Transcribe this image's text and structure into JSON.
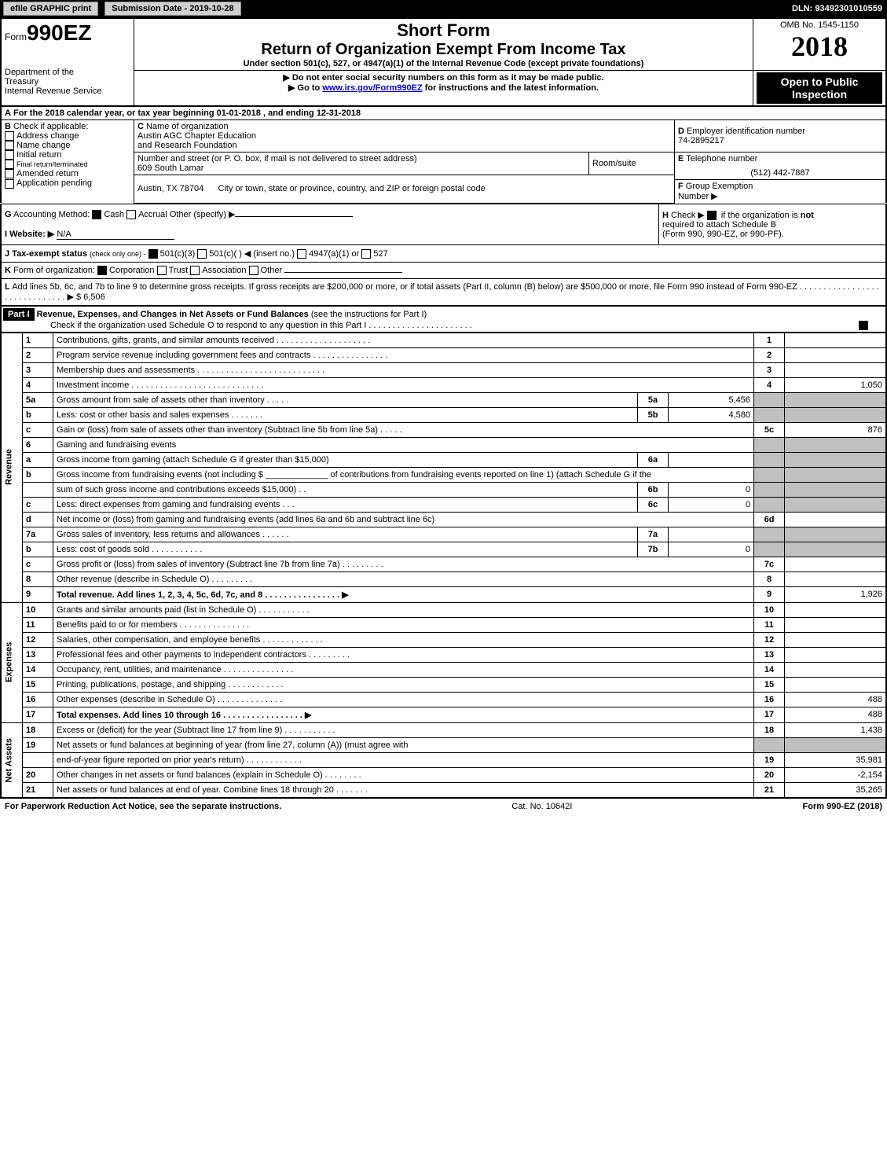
{
  "top": {
    "efile_btn": "efile GRAPHIC print",
    "submission": "Submission Date - 2019-10-28",
    "dln": "DLN: 93492301010559"
  },
  "header": {
    "form_prefix": "Form",
    "form_number": "990EZ",
    "short_form": "Short Form",
    "main_title": "Return of Organization Exempt From Income Tax",
    "sub1": "Under section 501(c), 527, or 4947(a)(1) of the Internal Revenue Code (except private foundations)",
    "sub2": "▶ Do not enter social security numbers on this form as it may be made public.",
    "sub3_prefix": "▶ Go to ",
    "sub3_link": "www.irs.gov/Form990EZ",
    "sub3_suffix": " for instructions and the latest information.",
    "dept1": "Department of the",
    "dept2": "Treasury",
    "dept3": "Internal Revenue Service",
    "omb": "OMB No. 1545-1150",
    "year": "2018",
    "open1": "Open to Public",
    "open2": "Inspection"
  },
  "lineA": {
    "label": "A",
    "text_prefix": "For the 2018 calendar year, or tax year beginning ",
    "begin_date": "01-01-2018",
    "mid": ", and ending ",
    "end_date": "12-31-2018"
  },
  "boxB": {
    "label": "B",
    "title": "Check if applicable:",
    "items": [
      "Address change",
      "Name change",
      "Initial return",
      "Final return/terminated",
      "Amended return",
      "Application pending"
    ]
  },
  "boxC": {
    "label": "C",
    "title": "Name of organization",
    "name1": "Austin AGC Chapter Education",
    "name2": "and Research Foundation",
    "addr_title": "Number and street (or P. O. box, if mail is not delivered to street address)",
    "addr": "609 South Lamar",
    "room_title": "Room/suite",
    "city_title": "City or town, state or province, country, and ZIP or foreign postal code",
    "city": "Austin, TX  78704"
  },
  "boxD": {
    "label": "D",
    "title": "Employer identification number",
    "value": "74-2895217"
  },
  "boxE": {
    "label": "E",
    "title": "Telephone number",
    "value": "(512) 442-7887"
  },
  "boxF": {
    "label": "F",
    "title": "Group Exemption",
    "sub": "Number ▶"
  },
  "lineG": {
    "label": "G",
    "text": " Accounting Method:",
    "opt1": "Cash",
    "opt2": "Accrual",
    "opt3": "Other (specify) ▶"
  },
  "lineH": {
    "label": "H",
    "text1": "Check ▶",
    "text2": "if the organization is ",
    "text3": "not",
    "text4": "required to attach Schedule B",
    "text5": "(Form 990, 990-EZ, or 990-PF)."
  },
  "lineI": {
    "label": "I Website: ▶",
    "value": "N/A"
  },
  "lineJ": {
    "label": "J Tax-exempt status",
    "note": "(check only one) -",
    "opt1": "501(c)(3)",
    "opt2": "501(c)(  ) ◀ (insert no.)",
    "opt3": "4947(a)(1) or",
    "opt4": "527"
  },
  "lineK": {
    "label": "K",
    "text": "Form of organization:",
    "opt1": "Corporation",
    "opt2": "Trust",
    "opt3": "Association",
    "opt4": "Other"
  },
  "lineL": {
    "label": "L",
    "text": "Add lines 5b, 6c, and 7b to line 9 to determine gross receipts. If gross receipts are $200,000 or more, or if total assets (Part II, column (B) below) are $500,000 or more, file Form 990 instead of Form 990-EZ . . . . . . . . . . . . . . . . . . . . . . . . . . . . . . ▶ $",
    "value": "6,506"
  },
  "part1": {
    "label": "Part I",
    "title": "Revenue, Expenses, and Changes in Net Assets or Fund Balances",
    "subtitle": " (see the instructions for Part I)",
    "check_text": "Check if the organization used Schedule O to respond to any question in this Part I . . . . . . . . . . . . . . . . . . . . . ."
  },
  "sections": {
    "revenue": "Revenue",
    "expenses": "Expenses",
    "netassets": "Net Assets"
  },
  "rows": [
    {
      "n": "1",
      "desc": "Contributions, gifts, grants, and similar amounts received . . . . . . . . . . . . . . . . . . . .",
      "box": "1",
      "amt": ""
    },
    {
      "n": "2",
      "desc": "Program service revenue including government fees and contracts . . . . . . . . . . . . . . . .",
      "box": "2",
      "amt": ""
    },
    {
      "n": "3",
      "desc": "Membership dues and assessments . . . . . . . . . . . . . . . . . . . . . . . . . . .",
      "box": "3",
      "amt": ""
    },
    {
      "n": "4",
      "desc": "Investment income . . . . . . . . . . . . . . . . . . . . . . . . . . . .",
      "box": "4",
      "amt": "1,050"
    },
    {
      "n": "5a",
      "desc": "Gross amount from sale of assets other than inventory . . . . .",
      "sbox": "5a",
      "samt": "5,456"
    },
    {
      "n": "b",
      "desc": "Less: cost or other basis and sales expenses . . . . . . .",
      "sbox": "5b",
      "samt": "4,580"
    },
    {
      "n": "c",
      "desc": "Gain or (loss) from sale of assets other than inventory (Subtract line 5b from line 5a) . . . . .",
      "box": "5c",
      "amt": "876"
    },
    {
      "n": "6",
      "desc": "Gaming and fundraising events",
      "gray": true
    },
    {
      "n": "a",
      "desc": "Gross income from gaming (attach Schedule G if greater than $15,000)",
      "sbox": "6a",
      "samt": ""
    },
    {
      "n": "b",
      "desc": "Gross income from fundraising events (not including $ _____________ of contributions from fundraising events reported on line 1) (attach Schedule G if the",
      "nosbox": true
    },
    {
      "n": "",
      "desc": "sum of such gross income and contributions exceeds $15,000) . .",
      "sbox": "6b",
      "samt": "0"
    },
    {
      "n": "c",
      "desc": "Less: direct expenses from gaming and fundraising events . . .",
      "sbox": "6c",
      "samt": "0"
    },
    {
      "n": "d",
      "desc": "Net income or (loss) from gaming and fundraising events (add lines 6a and 6b and subtract line 6c)",
      "box": "6d",
      "amt": ""
    },
    {
      "n": "7a",
      "desc": "Gross sales of inventory, less returns and allowances . . . . . .",
      "sbox": "7a",
      "samt": ""
    },
    {
      "n": "b",
      "desc": "Less: cost of goods sold . . . . . . . . . . .",
      "sbox": "7b",
      "samt": "0"
    },
    {
      "n": "c",
      "desc": "Gross profit or (loss) from sales of inventory (Subtract line 7b from line 7a) . . . . . . . . .",
      "box": "7c",
      "amt": ""
    },
    {
      "n": "8",
      "desc": "Other revenue (describe in Schedule O) . . . . . . . . .",
      "box": "8",
      "amt": ""
    },
    {
      "n": "9",
      "desc": "Total revenue. Add lines 1, 2, 3, 4, 5c, 6d, 7c, and 8 . . . . . . . . . . . . . . . . ▶",
      "box": "9",
      "amt": "1,926",
      "bold": true
    },
    {
      "n": "10",
      "desc": "Grants and similar amounts paid (list in Schedule O) . . . . . . . . . . .",
      "box": "10",
      "amt": "",
      "sec": "exp"
    },
    {
      "n": "11",
      "desc": "Benefits paid to or for members . . . . . . . . . . . . . . .",
      "box": "11",
      "amt": ""
    },
    {
      "n": "12",
      "desc": "Salaries, other compensation, and employee benefits . . . . . . . . . . . . .",
      "box": "12",
      "amt": ""
    },
    {
      "n": "13",
      "desc": "Professional fees and other payments to independent contractors . . . . . . . . .",
      "box": "13",
      "amt": ""
    },
    {
      "n": "14",
      "desc": "Occupancy, rent, utilities, and maintenance . . . . . . . . . . . . . . .",
      "box": "14",
      "amt": ""
    },
    {
      "n": "15",
      "desc": "Printing, publications, postage, and shipping . . . . . . . . . . . .",
      "box": "15",
      "amt": ""
    },
    {
      "n": "16",
      "desc": "Other expenses (describe in Schedule O) . . . . . . . . . . . . . .",
      "box": "16",
      "amt": "488"
    },
    {
      "n": "17",
      "desc": "Total expenses. Add lines 10 through 16 . . . . . . . . . . . . . . . . . ▶",
      "box": "17",
      "amt": "488",
      "bold": true
    },
    {
      "n": "18",
      "desc": "Excess or (deficit) for the year (Subtract line 17 from line 9) . . . . . . . . . . .",
      "box": "18",
      "amt": "1,438",
      "sec": "net"
    },
    {
      "n": "19",
      "desc": "Net assets or fund balances at beginning of year (from line 27, column (A)) (must agree with",
      "nosbox": true,
      "gray2": true
    },
    {
      "n": "",
      "desc": "end-of-year figure reported on prior year's return) . . . . . . . . . . . .",
      "box": "19",
      "amt": "35,981"
    },
    {
      "n": "20",
      "desc": "Other changes in net assets or fund balances (explain in Schedule O) . . . . . . . .",
      "box": "20",
      "amt": "-2,154"
    },
    {
      "n": "21",
      "desc": "Net assets or fund balances at end of year. Combine lines 18 through 20 . . . . . . .",
      "box": "21",
      "amt": "35,265"
    }
  ],
  "footer": {
    "left": "For Paperwork Reduction Act Notice, see the separate instructions.",
    "mid": "Cat. No. 10642I",
    "right": "Form 990-EZ (2018)"
  }
}
